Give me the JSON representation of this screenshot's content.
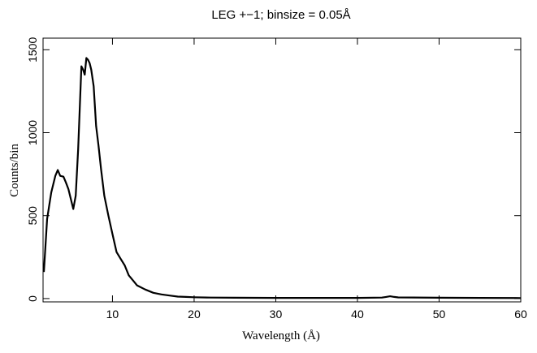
{
  "chart_data": {
    "type": "line",
    "title": "LEG +−1; binsize = 0.05Å",
    "xlabel": "Wavelength (Å)",
    "ylabel": "Counts/bin",
    "xlim": [
      1.5,
      60
    ],
    "ylim": [
      -20,
      1570
    ],
    "grid": false,
    "x_ticks": [
      10,
      20,
      30,
      40,
      50,
      60
    ],
    "x_tick_labels": [
      "10",
      "20",
      "30",
      "40",
      "50",
      "60"
    ],
    "y_ticks": [
      0,
      500,
      1000,
      1500
    ],
    "y_tick_labels": [
      "0",
      "500",
      "1000",
      "1500"
    ],
    "series": [
      {
        "color": "#000000",
        "x": [
          1.6,
          2.0,
          2.5,
          3.0,
          3.3,
          3.6,
          4.0,
          4.3,
          4.6,
          4.9,
          5.2,
          5.5,
          5.8,
          6.0,
          6.2,
          6.4,
          6.6,
          6.8,
          7.0,
          7.2,
          7.4,
          7.7,
          8.0,
          8.3,
          8.6,
          9.0,
          9.5,
          10.0,
          10.5,
          11.0,
          11.5,
          12.0,
          12.5,
          13.0,
          14.0,
          15.0,
          16.0,
          17.0,
          18.0,
          19.0,
          20.0,
          22.0,
          25.0,
          30.0,
          35.0,
          40.0,
          43.0,
          43.5,
          44.0,
          44.5,
          45.0,
          50.0,
          55.0,
          60.0
        ],
        "y": [
          160,
          480,
          640,
          740,
          775,
          740,
          735,
          700,
          660,
          600,
          540,
          620,
          900,
          1150,
          1400,
          1380,
          1350,
          1450,
          1440,
          1420,
          1380,
          1280,
          1040,
          920,
          780,
          620,
          500,
          390,
          280,
          240,
          200,
          140,
          110,
          80,
          55,
          35,
          25,
          18,
          12,
          10,
          8,
          6,
          5,
          4,
          4,
          4,
          6,
          10,
          14,
          10,
          7,
          5,
          4,
          3
        ]
      }
    ]
  }
}
